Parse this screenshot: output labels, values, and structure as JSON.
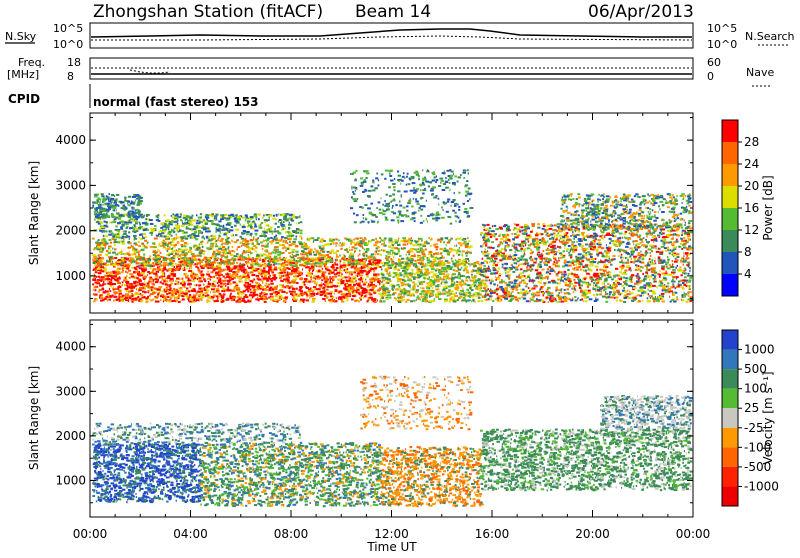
{
  "header": {
    "station": "Zhongshan Station (fitACF)",
    "beam": "Beam 14",
    "date": "06/Apr/2013"
  },
  "strip_labels": {
    "nsky": "N.Sky",
    "nsearch": "N.Search",
    "freq_top": "Freq.",
    "freq_unit": "[MHz]",
    "nave": "Nave",
    "cpid": "CPID",
    "mode": "normal (fast stereo) 153"
  },
  "strip_ticks": {
    "noise_left": [
      "10^5",
      "10^0"
    ],
    "noise_right": [
      "10^5",
      "10^0"
    ],
    "freq_left": [
      "18",
      "8"
    ],
    "freq_right": [
      "60",
      "0"
    ]
  },
  "chart_data": [
    {
      "type": "heatmap",
      "title": "",
      "xlabel": "Time UT",
      "ylabel": "Slant Range [km]",
      "x_ticks": [
        "00:00",
        "04:00",
        "08:00",
        "12:00",
        "16:00",
        "20:00",
        "00:00"
      ],
      "y_ticks": [
        "1000",
        "2000",
        "3000",
        "4000"
      ],
      "ylim": [
        180,
        4600
      ],
      "colorbar": {
        "label": "Power [dB]",
        "ticks": [
          "4",
          "8",
          "12",
          "16",
          "20",
          "24",
          "28"
        ],
        "colors": [
          "#0000ff",
          "#2255bb",
          "#3a8a5a",
          "#55bb33",
          "#dddd00",
          "#ff9900",
          "#ff6600",
          "#ff0000"
        ]
      }
    },
    {
      "type": "heatmap",
      "title": "",
      "xlabel": "Time UT",
      "ylabel": "Slant Range [km]",
      "x_ticks": [
        "00:00",
        "04:00",
        "08:00",
        "12:00",
        "16:00",
        "20:00",
        "00:00"
      ],
      "y_ticks": [
        "1000",
        "2000",
        "3000",
        "4000"
      ],
      "ylim": [
        180,
        4600
      ],
      "colorbar": {
        "label": "Velocity [m s⁻¹]",
        "ticks": [
          "1000",
          "500",
          "100",
          "25",
          "-25",
          "-100",
          "-500",
          "-1000"
        ],
        "colors": [
          "#2244cc",
          "#3377bb",
          "#3a8a5a",
          "#55bb33",
          "#c8c8c0",
          "#ff9900",
          "#ff6600",
          "#ff2200",
          "#ee0000"
        ]
      }
    }
  ]
}
